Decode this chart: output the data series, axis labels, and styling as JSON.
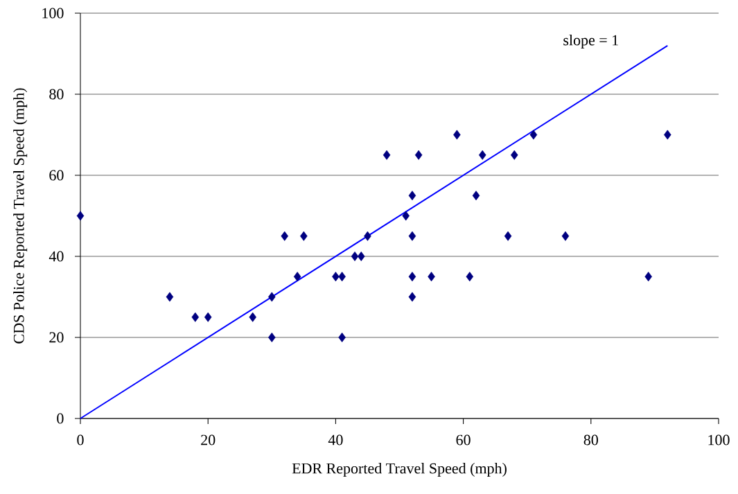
{
  "chart_data": {
    "type": "scatter",
    "xlabel": "EDR Reported Travel Speed (mph)",
    "ylabel": "CDS Police Reported Travel Speed (mph)",
    "annotations": [
      "slope = 1"
    ],
    "x": [
      0,
      14,
      18,
      20,
      27,
      30,
      30,
      32,
      34,
      35,
      40,
      41,
      41,
      43,
      44,
      45,
      48,
      51,
      52,
      52,
      52,
      52,
      53,
      55,
      59,
      61,
      62,
      63,
      67,
      68,
      71,
      76,
      89,
      92
    ],
    "series": [
      {
        "color": "#000080",
        "marker": "diamond",
        "values": [
          50,
          30,
          25,
          25,
          25,
          30,
          20,
          45,
          35,
          45,
          35,
          35,
          20,
          40,
          40,
          45,
          65,
          50,
          55,
          45,
          35,
          30,
          65,
          35,
          70,
          35,
          55,
          65,
          45,
          65,
          70,
          45,
          35,
          70
        ]
      },
      {
        "type": "line",
        "color": "#0000ff",
        "x": [
          0,
          92
        ],
        "values": [
          0,
          92
        ]
      }
    ],
    "xlim": [
      0,
      100
    ],
    "ylim": [
      0,
      100
    ],
    "xticks": [
      0,
      20,
      40,
      60,
      80,
      100
    ],
    "yticks": [
      0,
      20,
      40,
      60,
      80,
      100
    ],
    "grid": "y"
  }
}
